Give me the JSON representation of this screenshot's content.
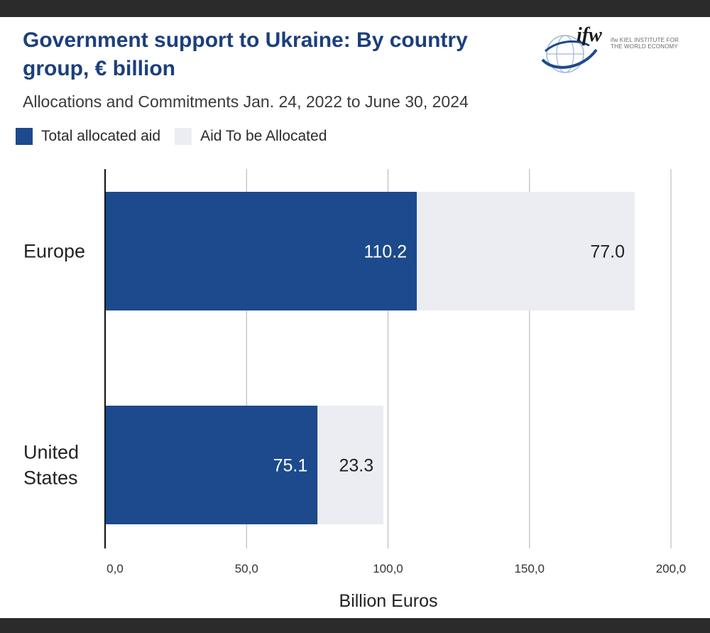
{
  "header": {
    "title": "Government support to Ukraine: By country group, € billion",
    "subtitle": "Allocations and Commitments Jan. 24, 2022 to June 30, 2024"
  },
  "logo": {
    "text": "ifw KIEL INSTITUTE FOR THE WORLD ECONOMY"
  },
  "colors": {
    "allocated": "#1c4a8c",
    "to_be_allocated": "#ecedf3",
    "title": "#1c3f7c",
    "grid": "#bdbdbd"
  },
  "chart_data": {
    "type": "bar",
    "orientation": "horizontal",
    "stacked": true,
    "title": "Government support to Ukraine: By country group, € billion",
    "subtitle": "Allocations and Commitments Jan. 24, 2022 to June 30, 2024",
    "categories": [
      "Europe",
      "United States"
    ],
    "series": [
      {
        "name": "Total allocated aid",
        "values": [
          110.2,
          75.1
        ],
        "labels": [
          "110.2",
          "75.1"
        ]
      },
      {
        "name": "Aid To be Allocated",
        "values": [
          77.0,
          23.3
        ],
        "labels": [
          "77.0",
          "23.3"
        ]
      }
    ],
    "xlabel": "Billion Euros",
    "ylabel": "",
    "xlim": [
      0,
      200
    ],
    "xticks": [
      0,
      50,
      100,
      150,
      200
    ],
    "xtick_labels": [
      "0,0",
      "50,0",
      "100,0",
      "150,0",
      "200,0"
    ],
    "grid": "vertical",
    "legend_position": "top-left"
  }
}
